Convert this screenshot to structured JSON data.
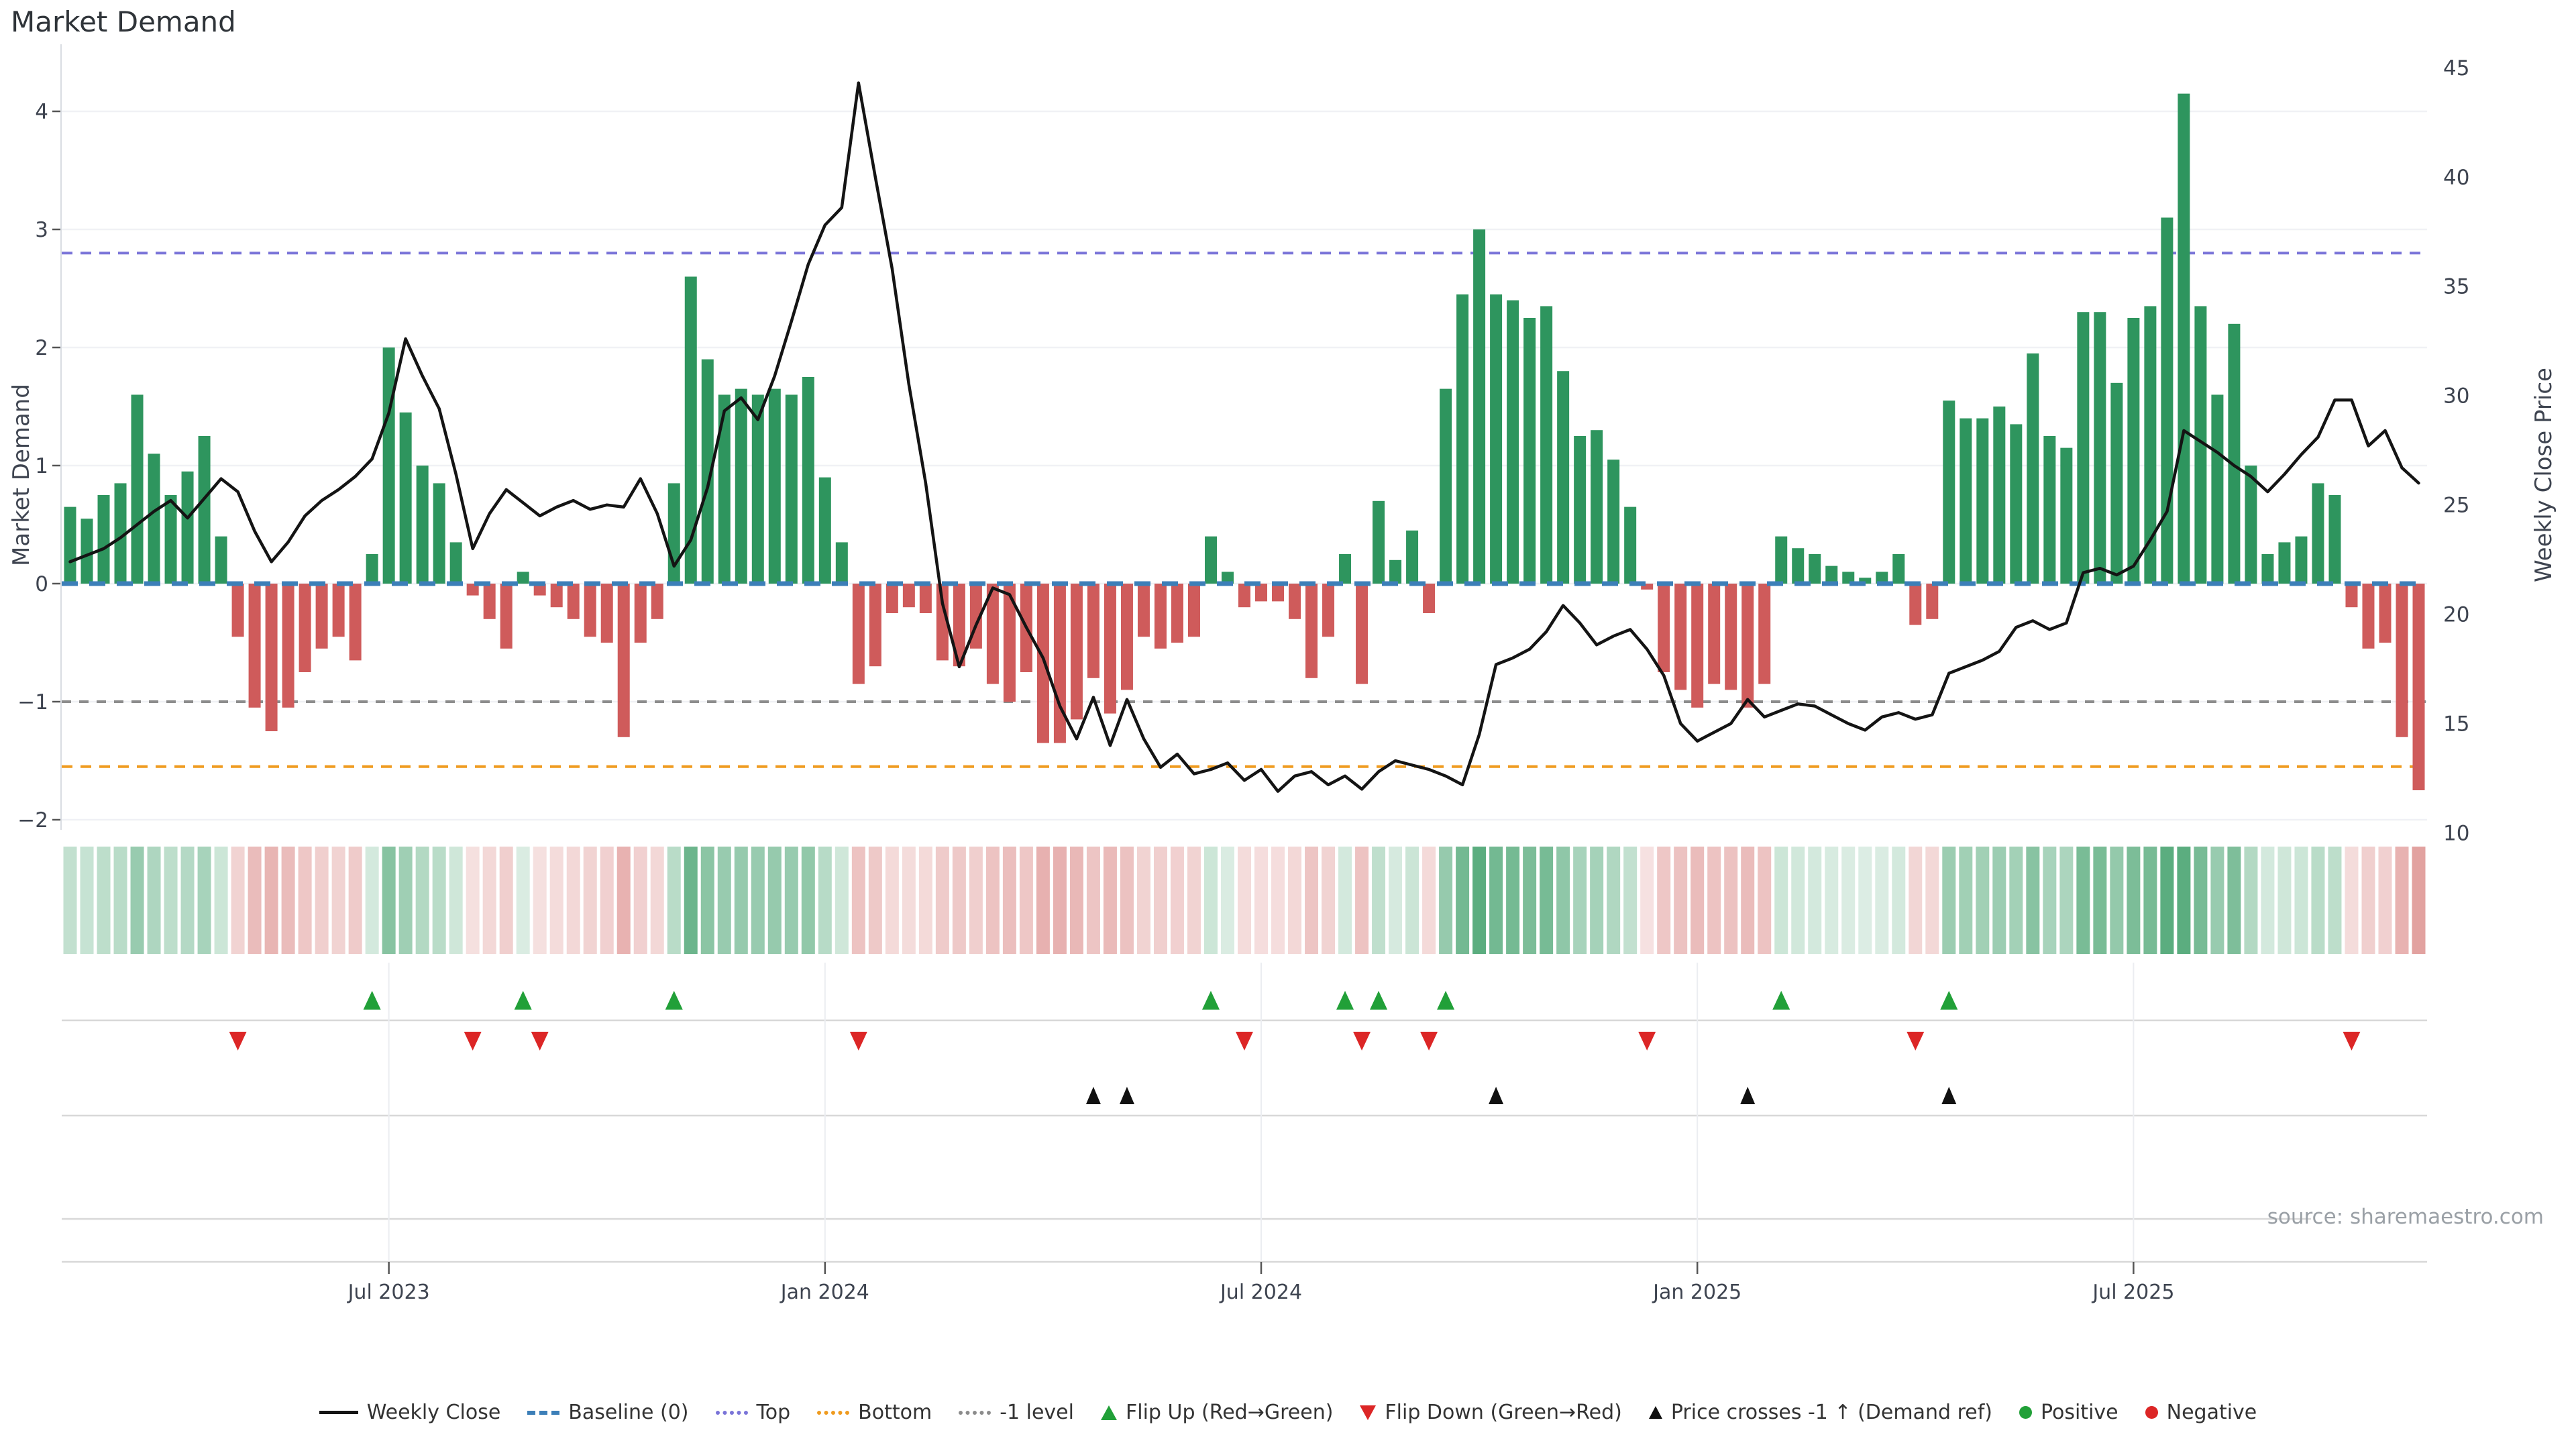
{
  "page": {
    "title": "Market Demand",
    "source": "source: sharemaestro.com"
  },
  "axes": {
    "left_label": "Market Demand",
    "right_label": "Weekly Close Price",
    "left_ticks": [
      4,
      3,
      2,
      1,
      0,
      -1,
      -2
    ],
    "right_ticks": [
      45,
      40,
      35,
      30,
      25,
      20,
      15,
      10
    ]
  },
  "legend": {
    "items": [
      {
        "label": "Weekly Close",
        "symbol": "black-line"
      },
      {
        "label": "Baseline (0)",
        "symbol": "blue-dashes"
      },
      {
        "label": "Top",
        "symbol": "purple-dots"
      },
      {
        "label": "Bottom",
        "symbol": "orange-dots"
      },
      {
        "label": "-1 level",
        "symbol": "gray-dots"
      },
      {
        "label": "Flip Up (Red→Green)",
        "symbol": "green-triangle-up"
      },
      {
        "label": "Flip Down (Green→Red)",
        "symbol": "red-triangle-down"
      },
      {
        "label": "Price crosses -1 ↑ (Demand ref)",
        "symbol": "black-triangle-up"
      },
      {
        "label": "Positive",
        "symbol": "green-dot"
      },
      {
        "label": "Negative",
        "symbol": "red-dot"
      }
    ]
  },
  "chart_data": {
    "type": "bar",
    "title": "Market Demand",
    "ylabel_left": "Market Demand",
    "ylabel_right": "Weekly Close Price",
    "left_ylim": [
      -2.3,
      4.3
    ],
    "right_ylim": [
      10,
      45
    ],
    "grid": true,
    "legend_position": "bottom-center",
    "n_weeks": 141,
    "x_tick_weeks": [
      20,
      46,
      72,
      98,
      124
    ],
    "x_tick_labels": [
      "Jul 2023",
      "Jan 2024",
      "Jul 2024",
      "Jan 2025",
      "Jul 2025"
    ],
    "thresholds": {
      "baseline": 0,
      "top": 2.8,
      "bottom": -1.55,
      "minus_one_level": -1
    },
    "price_demand_alignment": {
      "demand0_price": 21.4,
      "price_per_demand_unit": 5.4
    },
    "series": [
      {
        "name": "Market Demand (weekly bars, green=positive red=negative)",
        "values": [
          0.65,
          0.55,
          0.75,
          0.85,
          1.6,
          1.1,
          0.75,
          0.95,
          1.25,
          0.4,
          -0.45,
          -1.05,
          -1.25,
          -1.05,
          -0.75,
          -0.55,
          -0.45,
          -0.65,
          0.25,
          2.0,
          1.45,
          1.0,
          0.85,
          0.35,
          -0.1,
          -0.3,
          -0.55,
          0.1,
          -0.1,
          -0.2,
          -0.3,
          -0.45,
          -0.5,
          -1.3,
          -0.5,
          -0.3,
          0.85,
          2.6,
          1.9,
          1.6,
          1.65,
          1.6,
          1.65,
          1.6,
          1.75,
          0.9,
          0.35,
          -0.85,
          -0.7,
          -0.25,
          -0.2,
          -0.25,
          -0.65,
          -0.7,
          -0.55,
          -0.85,
          -1.0,
          -0.75,
          -1.35,
          -1.35,
          -1.15,
          -0.8,
          -1.1,
          -0.9,
          -0.45,
          -0.55,
          -0.5,
          -0.45,
          0.4,
          0.1,
          -0.2,
          -0.15,
          -0.15,
          -0.3,
          -0.8,
          -0.45,
          0.25,
          -0.85,
          0.7,
          0.2,
          0.45,
          -0.25,
          1.65,
          2.45,
          3.0,
          2.45,
          2.4,
          2.25,
          2.35,
          1.8,
          1.25,
          1.3,
          1.05,
          0.65,
          -0.05,
          -0.75,
          -0.9,
          -1.05,
          -0.85,
          -0.9,
          -1.05,
          -0.85,
          0.4,
          0.3,
          0.25,
          0.15,
          0.1,
          0.05,
          0.1,
          0.25,
          -0.35,
          -0.3,
          1.55,
          1.4,
          1.4,
          1.5,
          1.35,
          1.95,
          1.25,
          1.15,
          2.3,
          2.3,
          1.7,
          2.25,
          2.35,
          3.1,
          4.15,
          2.35,
          1.6,
          2.2,
          1.0,
          0.25,
          0.35,
          0.4,
          0.85,
          0.75,
          -0.2,
          -0.55,
          -0.5,
          -1.3,
          -1.75
        ]
      },
      {
        "name": "Weekly Close (price line, right axis)",
        "values": [
          22.4,
          22.7,
          23.0,
          23.5,
          24.1,
          24.7,
          25.2,
          24.4,
          25.3,
          26.2,
          25.6,
          23.8,
          22.4,
          23.3,
          24.5,
          25.2,
          25.7,
          26.3,
          27.1,
          29.2,
          32.6,
          30.9,
          29.4,
          26.4,
          23.0,
          24.6,
          25.7,
          25.1,
          24.5,
          24.9,
          25.2,
          24.8,
          25.0,
          24.9,
          26.2,
          24.6,
          22.2,
          23.4,
          25.8,
          29.3,
          29.9,
          28.9,
          30.9,
          33.4,
          36.0,
          37.8,
          38.6,
          44.3,
          40.0,
          35.8,
          30.5,
          26.0,
          20.5,
          17.6,
          19.5,
          21.2,
          20.9,
          19.4,
          18.0,
          15.8,
          14.3,
          16.2,
          14.0,
          16.1,
          14.3,
          13.0,
          13.6,
          12.7,
          12.9,
          13.2,
          12.4,
          12.9,
          11.9,
          12.6,
          12.8,
          12.2,
          12.6,
          12.0,
          12.8,
          13.3,
          13.1,
          12.9,
          12.6,
          12.2,
          14.5,
          17.7,
          18.0,
          18.4,
          19.2,
          20.4,
          19.6,
          18.6,
          19.0,
          19.3,
          18.4,
          17.2,
          15.0,
          14.2,
          14.6,
          15.0,
          16.1,
          15.3,
          15.6,
          15.9,
          15.8,
          15.4,
          15.0,
          14.7,
          15.3,
          15.5,
          15.2,
          15.4,
          17.3,
          17.6,
          17.9,
          18.3,
          19.4,
          19.7,
          19.3,
          19.6,
          21.9,
          22.1,
          21.8,
          22.2,
          23.4,
          24.7,
          28.4,
          27.9,
          27.4,
          26.8,
          26.3,
          25.6,
          26.4,
          27.3,
          28.1,
          29.8,
          29.8,
          27.7,
          28.4,
          26.7,
          26.0
        ]
      }
    ],
    "heatmap_strip": "same weekly demand values shaded green (positive) / red (negative), intensity by magnitude",
    "markers": {
      "flip_up_weeks": [
        19,
        28,
        37,
        69,
        77,
        79,
        83,
        103,
        113
      ],
      "flip_down_weeks": [
        11,
        25,
        29,
        48,
        71,
        78,
        82,
        95,
        111,
        137
      ],
      "price_cross_minus1_up_weeks": [
        62,
        64,
        86,
        101,
        113
      ]
    },
    "colors": {
      "positive": "#2e955e",
      "negative": "#cf5b5b",
      "price_line": "#141414",
      "baseline": "#3c7fb8",
      "top": "#7a74d8",
      "bottom": "#ef9b1f",
      "minus_one": "#8c8c8c",
      "flip_up": "#21a038",
      "flip_down": "#dc2626",
      "cross": "#111111",
      "grid": "#f0f1f5",
      "separator": "#d8d8d8"
    }
  }
}
